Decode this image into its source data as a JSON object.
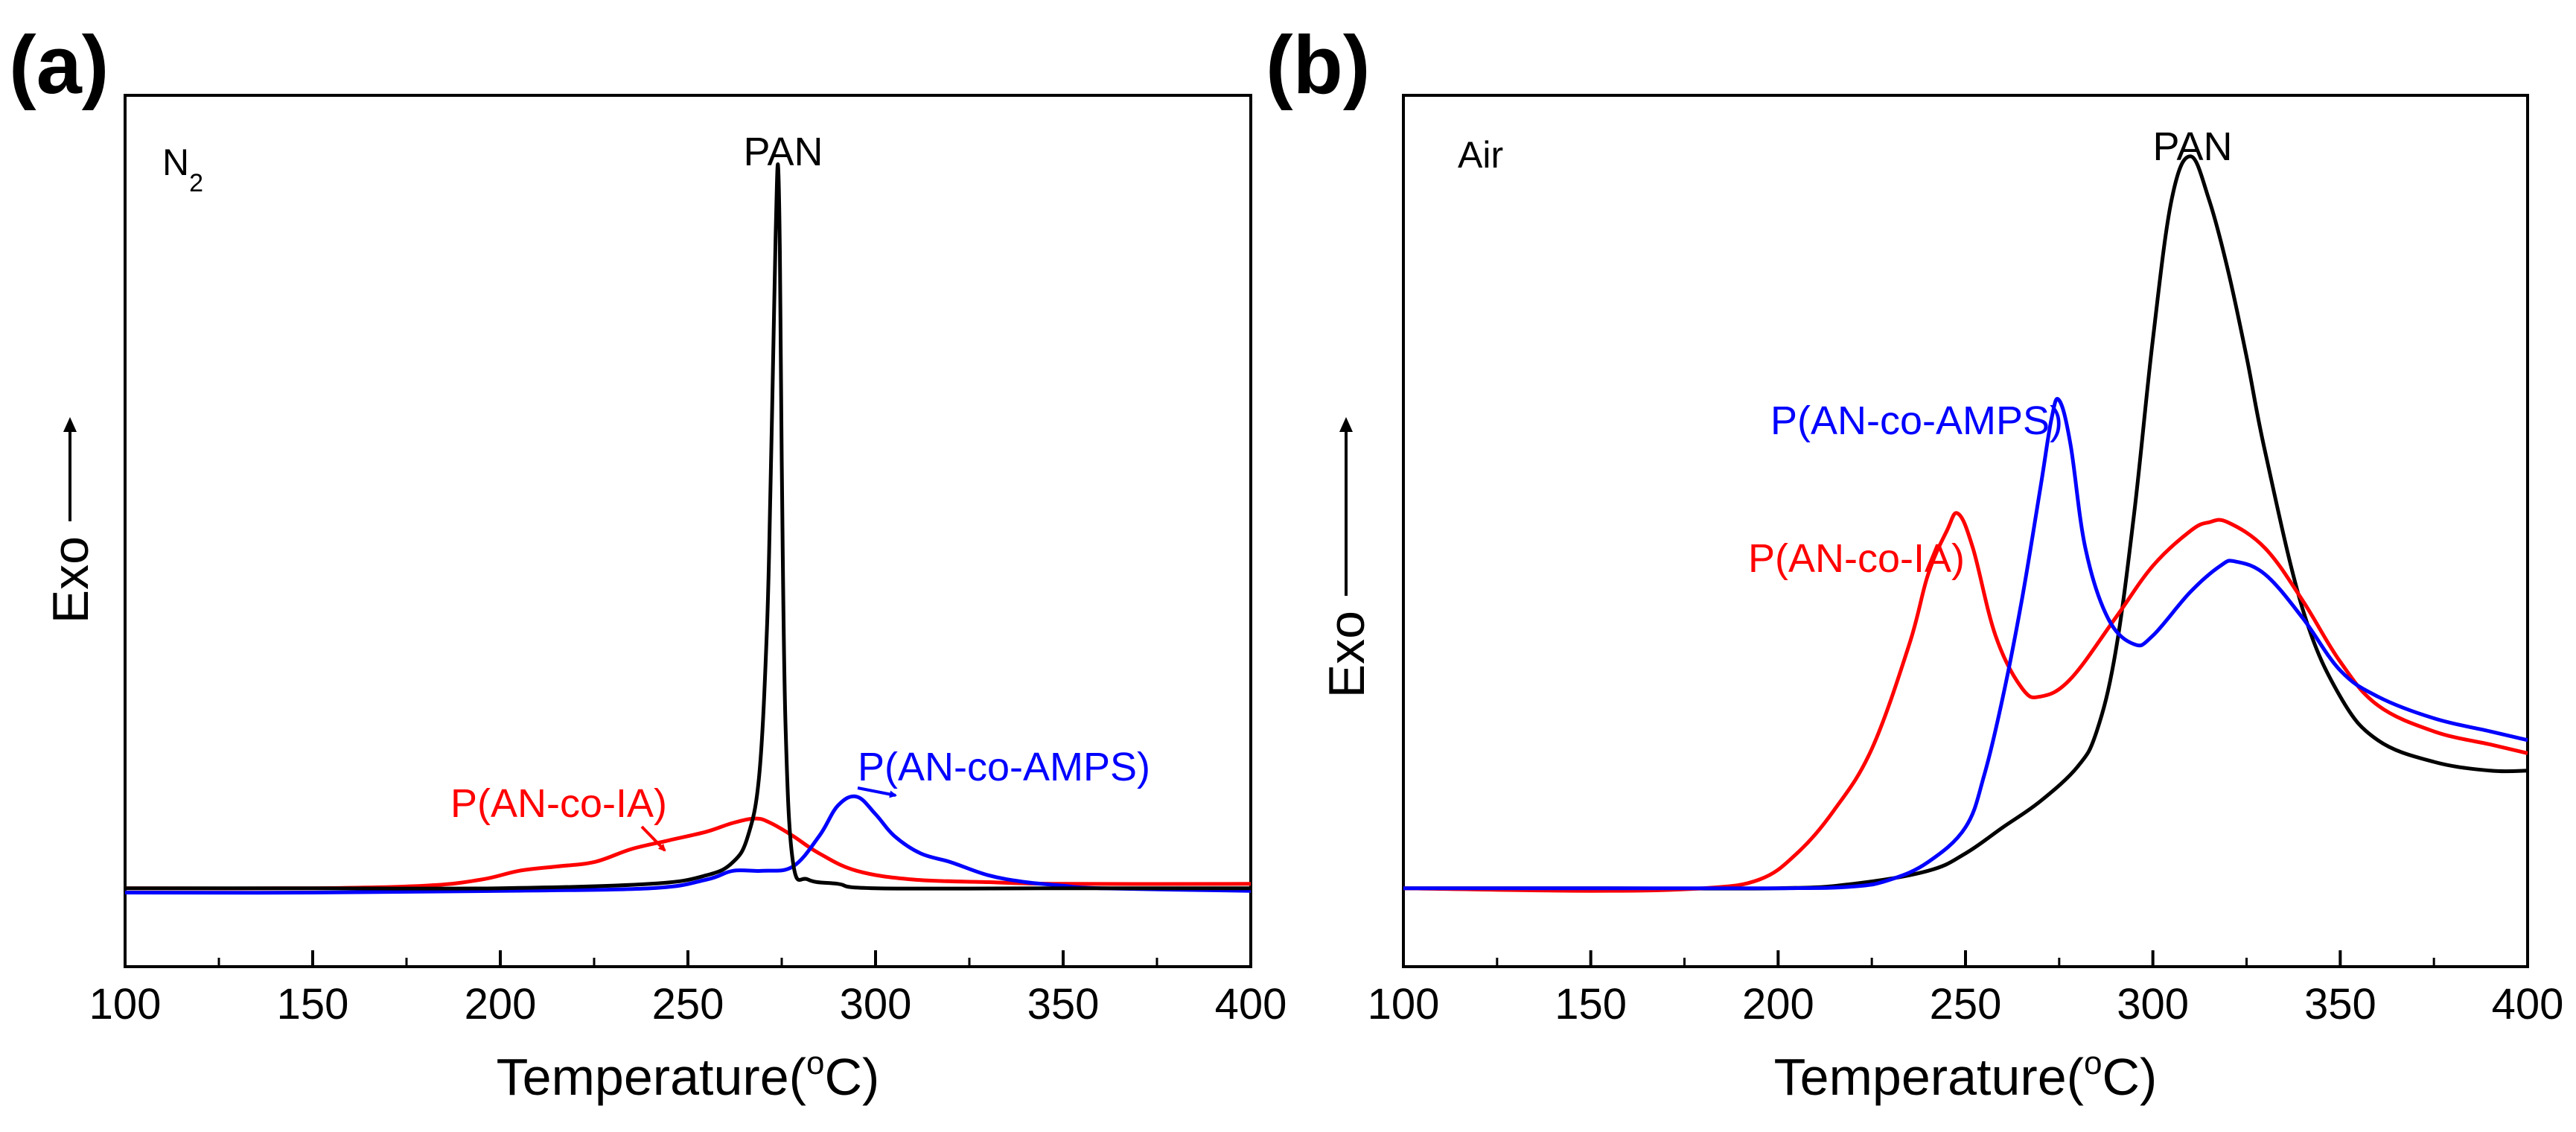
{
  "chart_data": [
    {
      "type": "line",
      "panel_label": "(a)",
      "condition": {
        "base": "N",
        "subscript": "2"
      },
      "xlabel": {
        "text": "Temperature(",
        "superscript": "o",
        "suffix": "C)"
      },
      "ylabel": "Exo",
      "xlim": [
        100,
        400
      ],
      "ylim": [
        0,
        100
      ],
      "xticks": [
        100,
        150,
        200,
        250,
        300,
        350,
        400
      ],
      "grid": false,
      "series": [
        {
          "name": "PAN",
          "color": "#000000",
          "x": [
            100,
            150,
            200,
            240,
            255,
            262,
            266,
            269,
            271,
            272,
            273,
            273.5,
            274,
            274.5,
            275,
            276,
            278,
            282,
            290,
            300,
            350,
            400
          ],
          "y": [
            9,
            9,
            9,
            9.5,
            10.5,
            12,
            15,
            22,
            38,
            55,
            76,
            86,
            92,
            82,
            58,
            28,
            12,
            10,
            9.5,
            9,
            9,
            9
          ]
        },
        {
          "name": "P(AN-co-IA)",
          "color": "#ff0000",
          "x": [
            100,
            150,
            180,
            195,
            205,
            215,
            225,
            235,
            245,
            255,
            262,
            268,
            272,
            278,
            285,
            295,
            310,
            330,
            350,
            400
          ],
          "y": [
            9,
            9,
            9.3,
            10,
            11,
            11.5,
            12,
            13.5,
            14.5,
            15.5,
            16.5,
            17,
            16.5,
            15,
            13,
            11,
            10,
            9.7,
            9.5,
            9.5
          ]
        },
        {
          "name": "P(AN-co-AMPS)",
          "color": "#0000ff",
          "x": [
            100,
            150,
            200,
            240,
            255,
            262,
            270,
            278,
            285,
            290,
            295,
            300,
            305,
            312,
            320,
            330,
            340,
            350,
            360,
            400
          ],
          "y": [
            8.5,
            8.5,
            8.7,
            9,
            10,
            11,
            11,
            11.5,
            15,
            18.5,
            19.5,
            17.5,
            15,
            13,
            12,
            10.5,
            9.7,
            9.3,
            9,
            8.7
          ]
        }
      ],
      "annotations": [
        {
          "text": "PAN",
          "color": "#000000"
        },
        {
          "text": "P(AN-co-IA)",
          "color": "#ff0000",
          "arrow_to": [
            257,
            16
          ]
        },
        {
          "text": "P(AN-co-AMPS)",
          "color": "#0000ff",
          "arrow_to": [
            307,
            21
          ]
        }
      ]
    },
    {
      "type": "line",
      "panel_label": "(b)",
      "condition": {
        "base": "Air",
        "subscript": ""
      },
      "xlabel": {
        "text": "Temperature(",
        "superscript": "o",
        "suffix": "C)"
      },
      "ylabel": "Exo",
      "xlim": [
        100,
        400
      ],
      "ylim": [
        0,
        100
      ],
      "xticks": [
        100,
        150,
        200,
        250,
        300,
        350,
        400
      ],
      "grid": false,
      "series": [
        {
          "name": "PAN",
          "color": "#000000",
          "x": [
            100,
            150,
            200,
            220,
            240,
            250,
            260,
            270,
            280,
            285,
            290,
            295,
            300,
            305,
            310,
            315,
            320,
            325,
            330,
            340,
            350,
            360,
            375,
            390,
            400
          ],
          "y": [
            9,
            9,
            9,
            9.5,
            11,
            13,
            16,
            19,
            23,
            27,
            36,
            52,
            72,
            88,
            93,
            88,
            80,
            70,
            59,
            41,
            31,
            26,
            23.5,
            22.5,
            22.5
          ]
        },
        {
          "name": "P(AN-co-IA)",
          "color": "#ff0000",
          "x": [
            100,
            150,
            180,
            195,
            205,
            215,
            225,
            235,
            240,
            245,
            248,
            252,
            258,
            265,
            270,
            278,
            290,
            300,
            310,
            315,
            320,
            330,
            340,
            350,
            360,
            375,
            390,
            400
          ],
          "y": [
            9,
            8.7,
            9,
            10,
            13,
            18,
            25,
            37,
            45,
            50,
            52,
            48,
            38,
            32,
            31,
            33,
            40,
            46,
            50,
            51,
            51,
            48,
            42,
            35,
            30,
            27,
            25.5,
            24.5
          ]
        },
        {
          "name": "P(AN-co-AMPS)",
          "color": "#0000ff",
          "x": [
            100,
            150,
            200,
            220,
            230,
            240,
            250,
            255,
            260,
            265,
            270,
            273,
            275,
            278,
            282,
            288,
            295,
            300,
            310,
            318,
            322,
            330,
            340,
            350,
            360,
            375,
            390,
            400
          ],
          "y": [
            9,
            9,
            9,
            9.2,
            10,
            12,
            16,
            22,
            31,
            42,
            55,
            63,
            65,
            60,
            48,
            40,
            37,
            38,
            43,
            46,
            46.5,
            45,
            40,
            34,
            31,
            28.5,
            27,
            26
          ]
        }
      ],
      "annotations": [
        {
          "text": "PAN",
          "color": "#000000"
        },
        {
          "text": "P(AN-co-AMPS)",
          "color": "#0000ff"
        },
        {
          "text": "P(AN-co-IA)",
          "color": "#ff0000"
        }
      ]
    }
  ]
}
